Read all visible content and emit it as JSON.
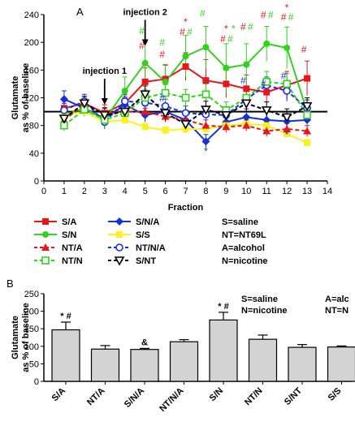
{
  "chart_data": [
    {
      "panel_label": "A",
      "type": "line",
      "xlabel": "Fraction",
      "ylabel": "Glutamate\nas % of baseline",
      "xlim": [
        0,
        14
      ],
      "ylim": [
        0,
        240
      ],
      "xticks": [
        0,
        1,
        2,
        3,
        4,
        5,
        6,
        7,
        8,
        9,
        10,
        11,
        12,
        13,
        14
      ],
      "yticks": [
        0,
        40,
        80,
        120,
        160,
        200,
        240
      ],
      "baseline": 100,
      "annotations": [
        {
          "text": "injection 1",
          "x": 3
        },
        {
          "text": "injection 2",
          "x": 5
        }
      ],
      "series": [
        {
          "name": "S/A",
          "color": "#e8151b",
          "marker": "square",
          "dash": false,
          "x": [
            1,
            2,
            3,
            4,
            5,
            6,
            7,
            8,
            9,
            10,
            11,
            12,
            13
          ],
          "values": [
            105,
            112,
            98,
            112,
            143,
            147,
            165,
            145,
            140,
            133,
            128,
            138,
            148
          ],
          "err": [
            10,
            10,
            12,
            10,
            20,
            20,
            20,
            30,
            20,
            20,
            15,
            20,
            25
          ]
        },
        {
          "name": "S/N/A",
          "color": "#1531d8",
          "marker": "diamond",
          "dash": false,
          "x": [
            1,
            2,
            3,
            4,
            5,
            6,
            7,
            8,
            9,
            10,
            11,
            12,
            13
          ],
          "values": [
            118,
            105,
            90,
            110,
            95,
            100,
            88,
            57,
            85,
            92,
            88,
            86,
            88
          ],
          "err": [
            12,
            10,
            10,
            10,
            10,
            10,
            12,
            10,
            10,
            12,
            12,
            10,
            10
          ]
        },
        {
          "name": "S/N",
          "color": "#2fd31c",
          "marker": "circle",
          "dash": false,
          "x": [
            1,
            2,
            3,
            4,
            5,
            6,
            7,
            8,
            9,
            10,
            11,
            12,
            13
          ],
          "values": [
            95,
            105,
            88,
            130,
            170,
            143,
            180,
            193,
            163,
            168,
            198,
            192,
            100
          ],
          "err": [
            10,
            10,
            10,
            20,
            30,
            25,
            30,
            30,
            35,
            30,
            25,
            30,
            20
          ]
        },
        {
          "name": "S/S",
          "color": "#fbf11c",
          "marker": "square",
          "dash": false,
          "x": [
            1,
            2,
            3,
            4,
            5,
            6,
            7,
            8,
            9,
            10,
            11,
            12,
            13
          ],
          "values": [
            95,
            100,
            85,
            88,
            78,
            73,
            75,
            75,
            80,
            82,
            80,
            68,
            55
          ],
          "err": [
            5,
            5,
            5,
            5,
            5,
            5,
            5,
            5,
            5,
            5,
            5,
            5,
            5
          ]
        },
        {
          "name": "NT/A",
          "color": "#e8151b",
          "marker": "triangle",
          "dash": true,
          "x": [
            1,
            2,
            3,
            4,
            5,
            6,
            7,
            8,
            9,
            10,
            11,
            12,
            13
          ],
          "values": [
            88,
            110,
            98,
            100,
            100,
            93,
            88,
            80,
            78,
            80,
            72,
            75,
            72
          ],
          "err": [
            8,
            8,
            8,
            8,
            8,
            8,
            8,
            8,
            8,
            8,
            8,
            8,
            8
          ]
        },
        {
          "name": "NT/N/A",
          "color": "#1531d8",
          "marker": "open-circle",
          "dash": true,
          "x": [
            1,
            2,
            3,
            4,
            5,
            6,
            7,
            8,
            9,
            10,
            11,
            12,
            13
          ],
          "values": [
            102,
            115,
            85,
            115,
            113,
            108,
            98,
            96,
            95,
            118,
            138,
            130,
            105
          ],
          "err": [
            10,
            10,
            10,
            10,
            10,
            10,
            10,
            10,
            10,
            12,
            12,
            15,
            12
          ]
        },
        {
          "name": "NT/N",
          "color": "#2fd31c",
          "marker": "open-square",
          "dash": true,
          "x": [
            1,
            2,
            3,
            4,
            5,
            6,
            7,
            8,
            9,
            10,
            11,
            12,
            13
          ],
          "values": [
            80,
            103,
            88,
            98,
            120,
            127,
            120,
            125,
            102,
            120,
            143,
            140,
            95
          ],
          "err": [
            8,
            10,
            10,
            10,
            12,
            12,
            12,
            15,
            12,
            15,
            15,
            15,
            15
          ]
        },
        {
          "name": "S/NT",
          "color": "#000000",
          "marker": "open-triangle-down",
          "dash": true,
          "x": [
            1,
            2,
            3,
            4,
            5,
            6,
            7,
            8,
            9,
            10,
            11,
            12,
            13
          ],
          "values": [
            90,
            112,
            95,
            100,
            125,
            98,
            82,
            103,
            95,
            112,
            102,
            92,
            108
          ],
          "err": [
            10,
            10,
            10,
            10,
            12,
            12,
            12,
            12,
            12,
            12,
            12,
            12,
            12
          ]
        }
      ],
      "significance": [
        {
          "x": 5,
          "y": 190,
          "text": "#",
          "color": "#e8151b"
        },
        {
          "x": 5,
          "y": 212,
          "text": "#",
          "color": "#2fd31c"
        },
        {
          "x": 6,
          "y": 195,
          "text": "#",
          "color": "#2fd31c"
        },
        {
          "x": 6,
          "y": 178,
          "text": "#",
          "color": "#e8151b"
        },
        {
          "x": 7,
          "y": 225,
          "text": "*",
          "color": "#e8151b"
        },
        {
          "x": 7,
          "y": 210,
          "text": "#",
          "color": "#e8151b"
        },
        {
          "x": 7,
          "y": 210,
          "text": "#",
          "color": "#2fd31c"
        },
        {
          "x": 8,
          "y": 237,
          "text": "#",
          "color": "#2fd31c"
        },
        {
          "x": 9,
          "y": 215,
          "text": "*",
          "color": "#e8151b"
        },
        {
          "x": 9,
          "y": 215,
          "text": "*",
          "color": "#2fd31c"
        },
        {
          "x": 9,
          "y": 200,
          "text": "#",
          "color": "#e8151b"
        },
        {
          "x": 9,
          "y": 200,
          "text": "#",
          "color": "#2fd31c"
        },
        {
          "x": 10,
          "y": 218,
          "text": "#",
          "color": "#e8151b"
        },
        {
          "x": 10,
          "y": 218,
          "text": "#",
          "color": "#2fd31c"
        },
        {
          "x": 11,
          "y": 235,
          "text": "#",
          "color": "#e8151b"
        },
        {
          "x": 11,
          "y": 235,
          "text": "#",
          "color": "#2fd31c"
        },
        {
          "x": 12,
          "y": 245,
          "text": "*",
          "color": "#e8151b"
        },
        {
          "x": 12,
          "y": 232,
          "text": "#",
          "color": "#e8151b"
        },
        {
          "x": 12,
          "y": 232,
          "text": "#",
          "color": "#2fd31c"
        },
        {
          "x": 13,
          "y": 185,
          "text": "#",
          "color": "#e8151b"
        },
        {
          "x": 10,
          "y": 140,
          "text": "#",
          "color": "#1531d8"
        },
        {
          "x": 11,
          "y": 135,
          "text": "#",
          "color": "#1531d8"
        },
        {
          "x": 12,
          "y": 147,
          "text": "#",
          "color": "#1531d8"
        },
        {
          "x": 6,
          "y": 115,
          "text": "#",
          "color": "#1531d8"
        },
        {
          "x": 8,
          "y": 38,
          "text": "*",
          "color": "#1531d8"
        },
        {
          "x": 12,
          "y": 62,
          "text": "*",
          "color": "#1531d8"
        }
      ],
      "legend_definitions": [
        "S=saline",
        "NT=NT69L",
        "A=alcohol",
        "N=nicotine"
      ]
    },
    {
      "panel_label": "B",
      "type": "bar",
      "ylabel": "Glutamate\nas % of baseline",
      "ylim": [
        0,
        250
      ],
      "yticks": [
        0,
        50,
        100,
        150,
        200,
        250
      ],
      "categories": [
        "S/A",
        "NT/A",
        "S/N/A",
        "NT/N/A",
        "S/N",
        "NT/N",
        "S/NT",
        "S/S"
      ],
      "values": [
        147,
        92,
        91,
        113,
        175,
        120,
        97,
        98
      ],
      "err": [
        22,
        10,
        3,
        6,
        22,
        12,
        8,
        3
      ],
      "bar_color": "#d3d3d3",
      "bar_labels": [
        "* #",
        "",
        "&",
        "",
        "* #",
        "",
        "",
        ""
      ],
      "legend_definitions": [
        "S=saline",
        "N=nicotine",
        "A=alc",
        "NT=N"
      ]
    }
  ]
}
